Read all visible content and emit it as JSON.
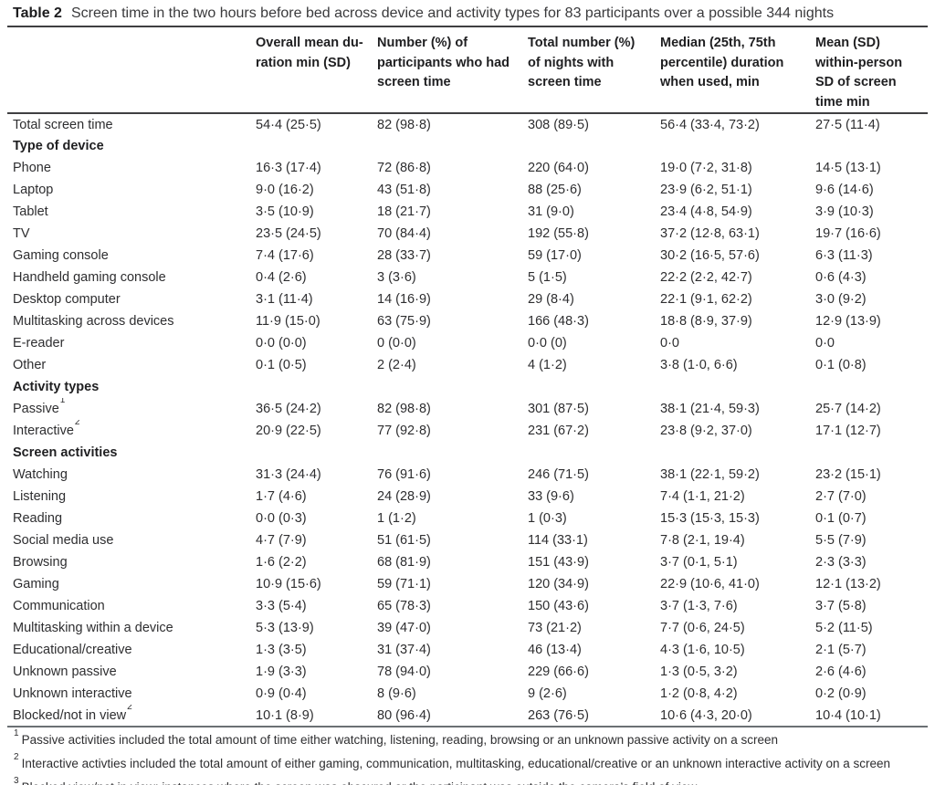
{
  "table": {
    "label": "Table 2",
    "title": "Screen time in the two hours before bed across device and activity types for 83 participants over a possible 344 nights",
    "columns": [
      "",
      "Overall mean du-\nration min (SD)",
      "Number (%) of\nparticipants who had\nscreen time",
      "Total number (%)\nof nights with\nscreen time",
      "Median (25th, 75th\npercentile) duration\nwhen used, min",
      "Mean (SD)\nwithin-person\nSD of screen\ntime min"
    ],
    "rows": [
      {
        "type": "data",
        "label": "Total screen time",
        "sup": "",
        "values": [
          "54·4 (25·5)",
          "82 (98·8)",
          "308 (89·5)",
          "56·4 (33·4, 73·2)",
          "27·5 (11·4)"
        ]
      },
      {
        "type": "section",
        "label": "Type of device"
      },
      {
        "type": "data",
        "label": "Phone",
        "sup": "",
        "values": [
          "16·3 (17·4)",
          "72 (86·8)",
          "220 (64·0)",
          "19·0 (7·2, 31·8)",
          "14·5 (13·1)"
        ]
      },
      {
        "type": "data",
        "label": "Laptop",
        "sup": "",
        "values": [
          "9·0 (16·2)",
          "43 (51·8)",
          "88 (25·6)",
          "23·9 (6·2, 51·1)",
          "9·6 (14·6)"
        ]
      },
      {
        "type": "data",
        "label": "Tablet",
        "sup": "",
        "values": [
          "3·5 (10·9)",
          "18 (21·7)",
          "31 (9·0)",
          "23·4 (4·8, 54·9)",
          "3·9 (10·3)"
        ]
      },
      {
        "type": "data",
        "label": "TV",
        "sup": "",
        "values": [
          "23·5 (24·5)",
          "70 (84·4)",
          "192 (55·8)",
          "37·2 (12·8, 63·1)",
          "19·7 (16·6)"
        ]
      },
      {
        "type": "data",
        "label": "Gaming console",
        "sup": "",
        "values": [
          "7·4 (17·6)",
          "28 (33·7)",
          "59 (17·0)",
          "30·2 (16·5, 57·6)",
          "6·3 (11·3)"
        ]
      },
      {
        "type": "data",
        "label": "Handheld gaming console",
        "sup": "",
        "values": [
          "0·4 (2·6)",
          "3 (3·6)",
          "5 (1·5)",
          "22·2 (2·2, 42·7)",
          "0·6 (4·3)"
        ]
      },
      {
        "type": "data",
        "label": "Desktop computer",
        "sup": "",
        "values": [
          "3·1 (11·4)",
          "14 (16·9)",
          "29 (8·4)",
          "22·1 (9·1, 62·2)",
          "3·0 (9·2)"
        ]
      },
      {
        "type": "data",
        "label": "Multitasking across devices",
        "sup": "",
        "values": [
          "11·9 (15·0)",
          "63 (75·9)",
          "166 (48·3)",
          "18·8 (8·9, 37·9)",
          "12·9 (13·9)"
        ]
      },
      {
        "type": "data",
        "label": "E-reader",
        "sup": "",
        "values": [
          "0·0 (0·0)",
          "0 (0·0)",
          "0·0 (0)",
          "0·0",
          "0·0"
        ]
      },
      {
        "type": "data",
        "label": "Other",
        "sup": "",
        "values": [
          "0·1 (0·5)",
          "2 (2·4)",
          "4 (1·2)",
          "3·8 (1·0, 6·6)",
          "0·1 (0·8)"
        ]
      },
      {
        "type": "section",
        "label": "Activity types"
      },
      {
        "type": "data",
        "label": "Passive",
        "sup": "1",
        "values": [
          "36·5 (24·2)",
          "82 (98·8)",
          "301 (87·5)",
          "38·1 (21·4, 59·3)",
          "25·7 (14·2)"
        ]
      },
      {
        "type": "data",
        "label": "Interactive",
        "sup": "2",
        "values": [
          "20·9 (22·5)",
          "77 (92·8)",
          "231 (67·2)",
          "23·8 (9·2, 37·0)",
          "17·1 (12·7)"
        ]
      },
      {
        "type": "section",
        "label": "Screen activities"
      },
      {
        "type": "data",
        "label": "Watching",
        "sup": "",
        "values": [
          "31·3 (24·4)",
          "76 (91·6)",
          "246 (71·5)",
          "38·1 (22·1, 59·2)",
          "23·2 (15·1)"
        ]
      },
      {
        "type": "data",
        "label": "Listening",
        "sup": "",
        "values": [
          "1·7 (4·6)",
          "24 (28·9)",
          "33 (9·6)",
          "7·4 (1·1, 21·2)",
          "2·7 (7·0)"
        ]
      },
      {
        "type": "data",
        "label": "Reading",
        "sup": "",
        "values": [
          "0·0 (0·3)",
          "1 (1·2)",
          "1 (0·3)",
          "15·3 (15·3, 15·3)",
          "0·1 (0·7)"
        ]
      },
      {
        "type": "data",
        "label": "Social media use",
        "sup": "",
        "values": [
          "4·7 (7·9)",
          "51 (61·5)",
          "114 (33·1)",
          "7·8 (2·1, 19·4)",
          "5·5 (7·9)"
        ]
      },
      {
        "type": "data",
        "label": "Browsing",
        "sup": "",
        "values": [
          "1·6 (2·2)",
          "68 (81·9)",
          "151 (43·9)",
          "3·7 (0·1, 5·1)",
          "2·3 (3·3)"
        ]
      },
      {
        "type": "data",
        "label": "Gaming",
        "sup": "",
        "values": [
          "10·9 (15·6)",
          "59 (71·1)",
          "120 (34·9)",
          "22·9 (10·6, 41·0)",
          "12·1 (13·2)"
        ]
      },
      {
        "type": "data",
        "label": "Communication",
        "sup": "",
        "values": [
          "3·3 (5·4)",
          "65 (78·3)",
          "150 (43·6)",
          "3·7 (1·3, 7·6)",
          "3·7 (5·8)"
        ]
      },
      {
        "type": "data",
        "label": "Multitasking within a device",
        "sup": "",
        "values": [
          "5·3 (13·9)",
          "39 (47·0)",
          "73 (21·2)",
          "7·7 (0·6, 24·5)",
          "5·2 (11·5)"
        ]
      },
      {
        "type": "data",
        "label": "Educational/creative",
        "sup": "",
        "values": [
          "1·3 (3·5)",
          "31 (37·4)",
          "46 (13·4)",
          "4·3 (1·6, 10·5)",
          "2·1 (5·7)"
        ]
      },
      {
        "type": "data",
        "label": "Unknown passive",
        "sup": "",
        "values": [
          "1·9 (3·3)",
          "78 (94·0)",
          "229 (66·6)",
          "1·3 (0·5, 3·2)",
          "2·6 (4·6)"
        ]
      },
      {
        "type": "data",
        "label": "Unknown interactive",
        "sup": "",
        "values": [
          "0·9 (0·4)",
          "8 (9·6)",
          "9 (2·6)",
          "1·2 (0·8, 4·2)",
          "0·2 (0·9)"
        ]
      },
      {
        "type": "data",
        "label": "Blocked/not in view",
        "sup": "2",
        "values": [
          "10·1 (8·9)",
          "80 (96·4)",
          "263 (76·5)",
          "10·6 (4·3, 20·0)",
          "10·4 (10·1)"
        ]
      }
    ],
    "footnotes": [
      {
        "sup": "1",
        "text": "Passive activities included the total amount of time either watching, listening, reading, browsing or an unknown passive activity on a screen"
      },
      {
        "sup": "2",
        "text": "Interactive activties included the total amount of either gaming, communication, multitasking, educational/creative or an unknown interactive activity on a screen"
      },
      {
        "sup": "3",
        "text": "Blocked view/not in view: instances where the screen was obscured or the participant was outside the camera’s field of view"
      }
    ]
  }
}
